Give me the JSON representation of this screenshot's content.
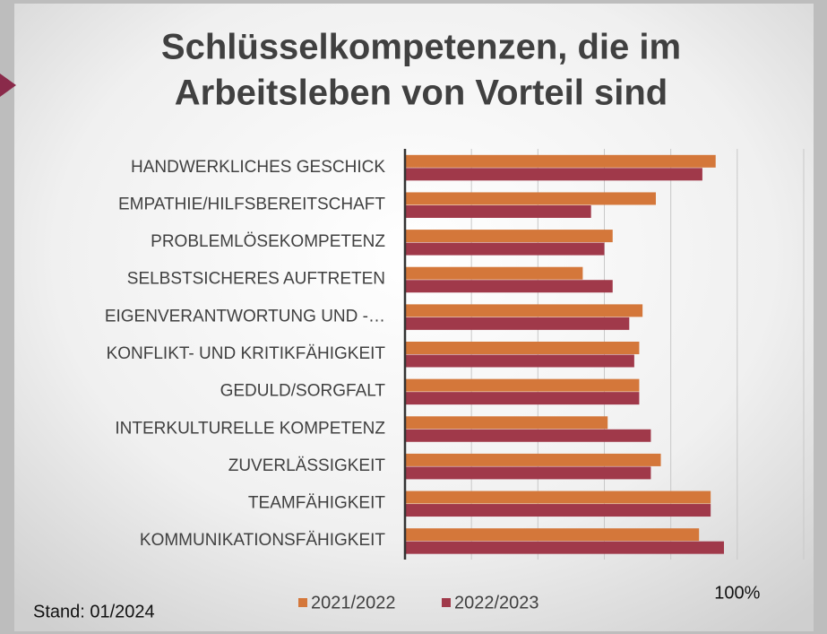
{
  "chart_data": {
    "type": "hbar",
    "title_lines": [
      "Schlüsselkompetenzen, die im",
      "Arbeitsleben von Vorteil sind"
    ],
    "categories": [
      "HANDWERKLICHES GESCHICK",
      "EMPATHIE/HILFSBEREITSCHAFT",
      "PROBLEMLÖSEKOMPETENZ",
      "SELBSTSICHERES AUFTRETEN",
      "EIGENVERANTWORTUNG UND -…",
      "KONFLIKT- UND KRITIKFÄHIGKEIT",
      "GEDULD/SORGFALT",
      "INTERKULTURELLE KOMPETENZ",
      "ZUVERLÄSSIGKEIT",
      "TEAMFÄHIGKEIT",
      "KOMMUNIKATIONSFÄHIGKEIT"
    ],
    "series": [
      {
        "name": "2021/2022",
        "color": "#d4773a",
        "values": [
          93.5,
          75.5,
          62.5,
          53.5,
          71.5,
          70.5,
          70.5,
          61,
          77,
          92,
          88.5
        ]
      },
      {
        "name": "2022/2023",
        "color": "#a0394a",
        "values": [
          89.5,
          56,
          60,
          62.5,
          67.5,
          69,
          70.5,
          74,
          74,
          92,
          96
        ]
      }
    ],
    "xlim": [
      0,
      120
    ],
    "grid_values": [
      20,
      40,
      60,
      80,
      100,
      120
    ],
    "xticks": [
      {
        "value": 100,
        "label": "100%"
      }
    ],
    "grid": true,
    "legend": "bottom",
    "footnote": "Stand: 01/2024"
  }
}
